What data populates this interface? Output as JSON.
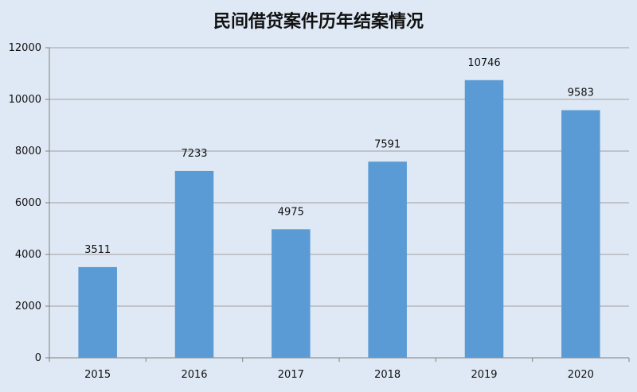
{
  "chart_data": {
    "type": "bar",
    "title": "民间借贷案件历年结案情况",
    "categories": [
      "2015",
      "2016",
      "2017",
      "2018",
      "2019",
      "2020"
    ],
    "values": [
      3511,
      7233,
      4975,
      7591,
      10746,
      9583
    ],
    "data_labels": [
      "3511",
      "7233",
      "4975",
      "7591",
      "10746",
      "9583"
    ],
    "y_ticks": [
      "0",
      "2000",
      "4000",
      "6000",
      "8000",
      "10000",
      "12000"
    ],
    "ylim": [
      0,
      12000
    ],
    "grid": true,
    "legend": "none",
    "colors": {
      "bar": "#5b9bd5",
      "background": "#dfe9f5",
      "grid": "#a0a0a0",
      "axis": "#808080"
    }
  }
}
